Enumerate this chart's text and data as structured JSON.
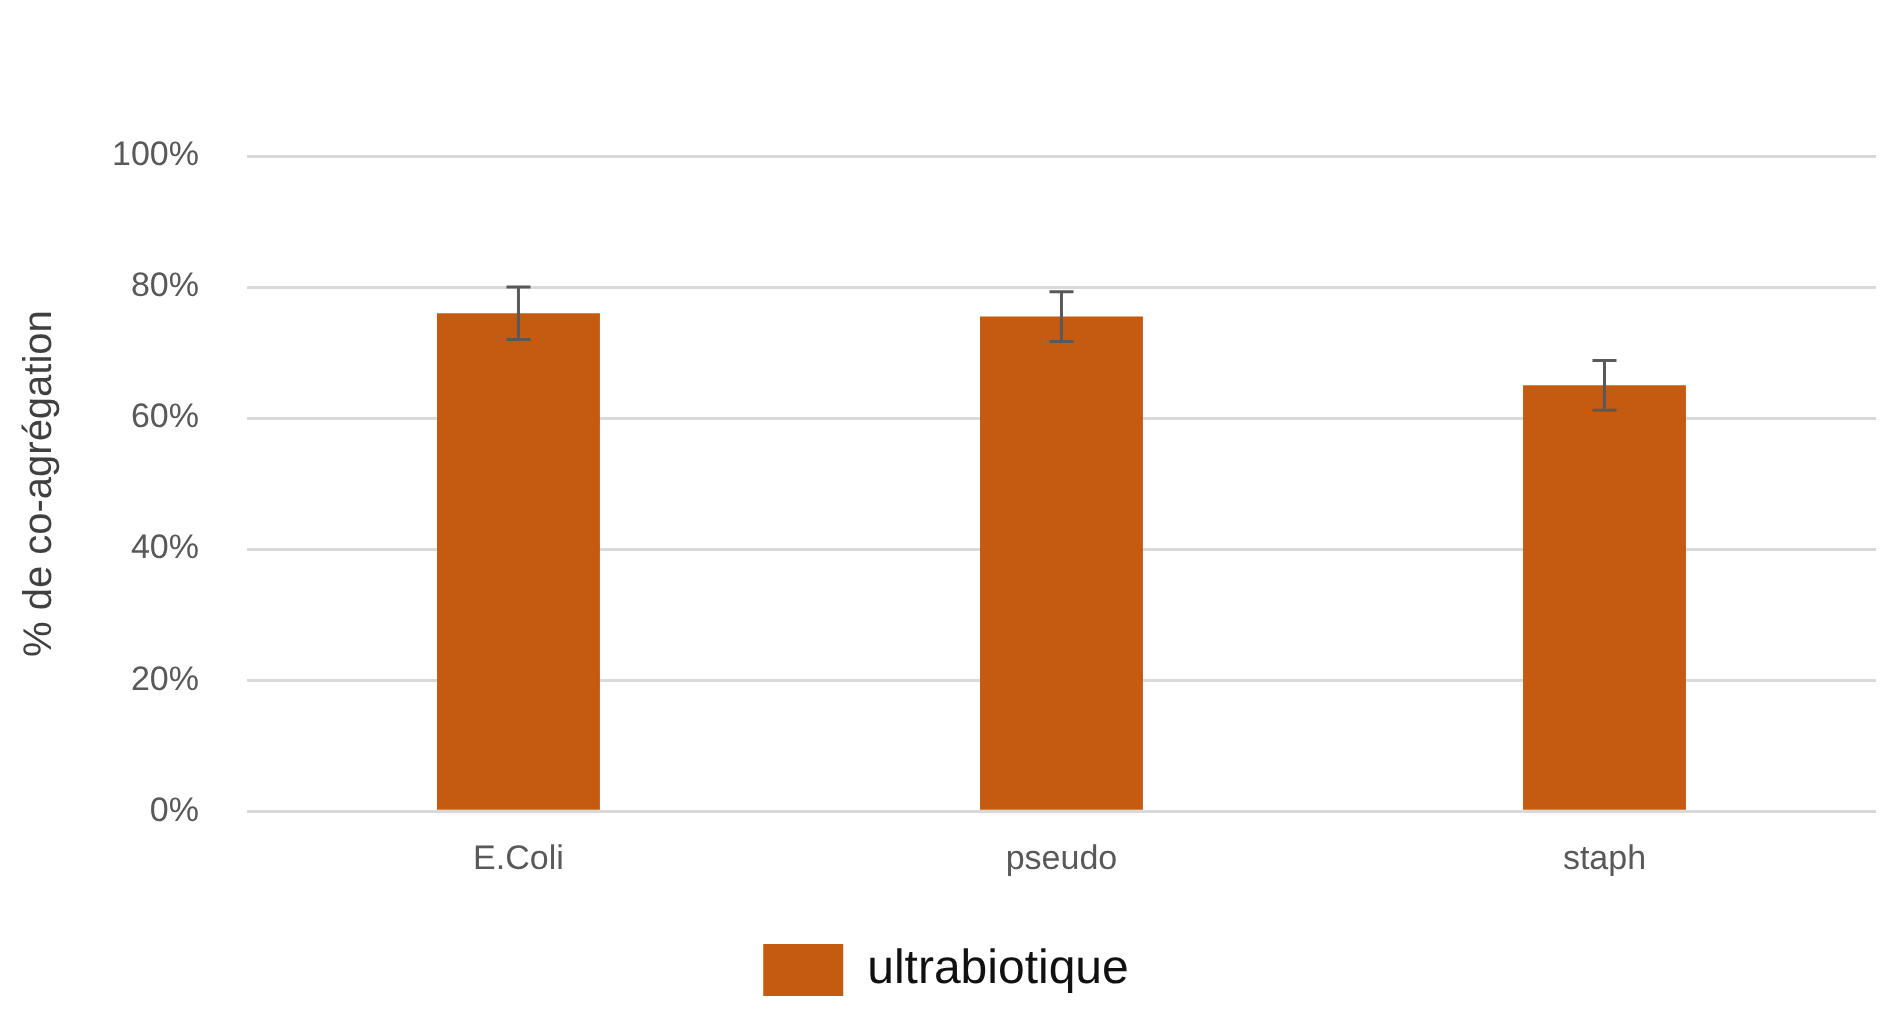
{
  "chart_data": {
    "type": "bar",
    "ylabel": "% de co-agrégation",
    "categories": [
      "E.Coli",
      "pseudo",
      "staph"
    ],
    "series": [
      {
        "name": "ultrabiotique",
        "color": "#c55a11",
        "values": [
          76,
          75.5,
          65
        ],
        "errors": [
          4,
          3.8,
          3.8
        ]
      }
    ],
    "ylim": [
      0,
      100
    ],
    "yticks": [
      {
        "value": 0,
        "label": "0%"
      },
      {
        "value": 20,
        "label": "20%"
      },
      {
        "value": 40,
        "label": "40%"
      },
      {
        "value": 60,
        "label": "60%"
      },
      {
        "value": 80,
        "label": "80%"
      },
      {
        "value": 100,
        "label": "100%"
      }
    ],
    "grid": "y",
    "legend": "bottom"
  }
}
